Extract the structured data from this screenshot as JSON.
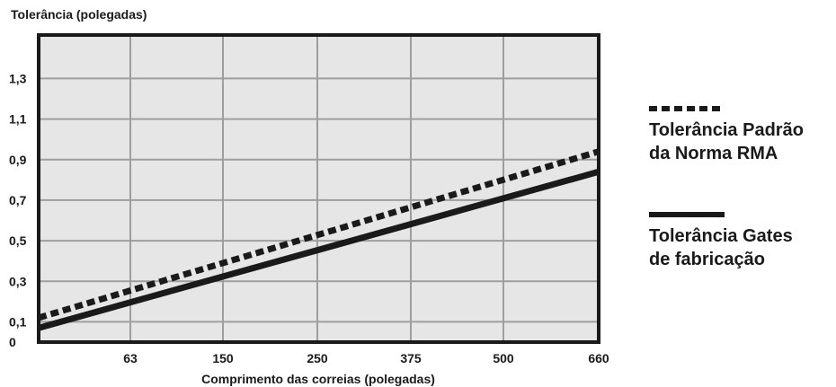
{
  "chart_data": {
    "type": "line",
    "title": "",
    "xlabel": "Comprimento das correias (polegadas)",
    "ylabel": "Tolerância (polegadas)",
    "x_ticks": [
      "63",
      "150",
      "250",
      "375",
      "500",
      "660"
    ],
    "y_ticks": [
      "0",
      "0,1",
      "0,3",
      "0,5",
      "0,7",
      "0,9",
      "1,1",
      "1,3"
    ],
    "grid": true,
    "legend_position": "right",
    "series": [
      {
        "name": "Tolerância Padrão da Norma RMA",
        "style": "dotted",
        "legend_lines": [
          "Tolerância Padrão",
          "da Norma RMA"
        ],
        "points": [
          {
            "x": 0,
            "y": 0.12
          },
          {
            "x": 660,
            "y": 0.94
          }
        ]
      },
      {
        "name": "Tolerância Gates de fabricação",
        "style": "solid",
        "legend_lines": [
          "Tolerância Gates",
          "de fabricação"
        ],
        "points": [
          {
            "x": 0,
            "y": 0.07
          },
          {
            "x": 660,
            "y": 0.84
          }
        ]
      }
    ],
    "colors": {
      "plot_background": "#e6e6e6",
      "grid": "#9e9e9e",
      "ink": "#1a1a1a"
    }
  }
}
